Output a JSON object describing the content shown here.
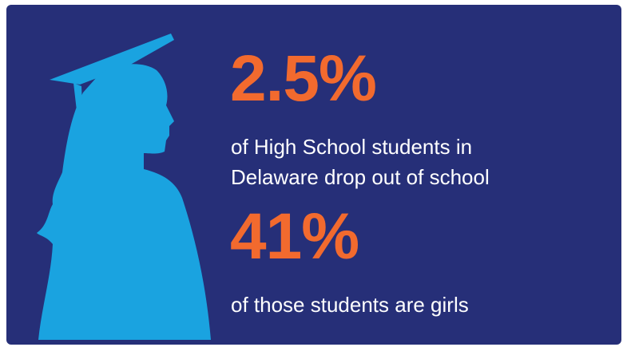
{
  "stats": [
    {
      "value": "2.5%",
      "lines": [
        "of High School students in",
        "Delaware drop out of school"
      ]
    },
    {
      "value": "41%",
      "lines": [
        "of those students are girls"
      ]
    }
  ]
}
